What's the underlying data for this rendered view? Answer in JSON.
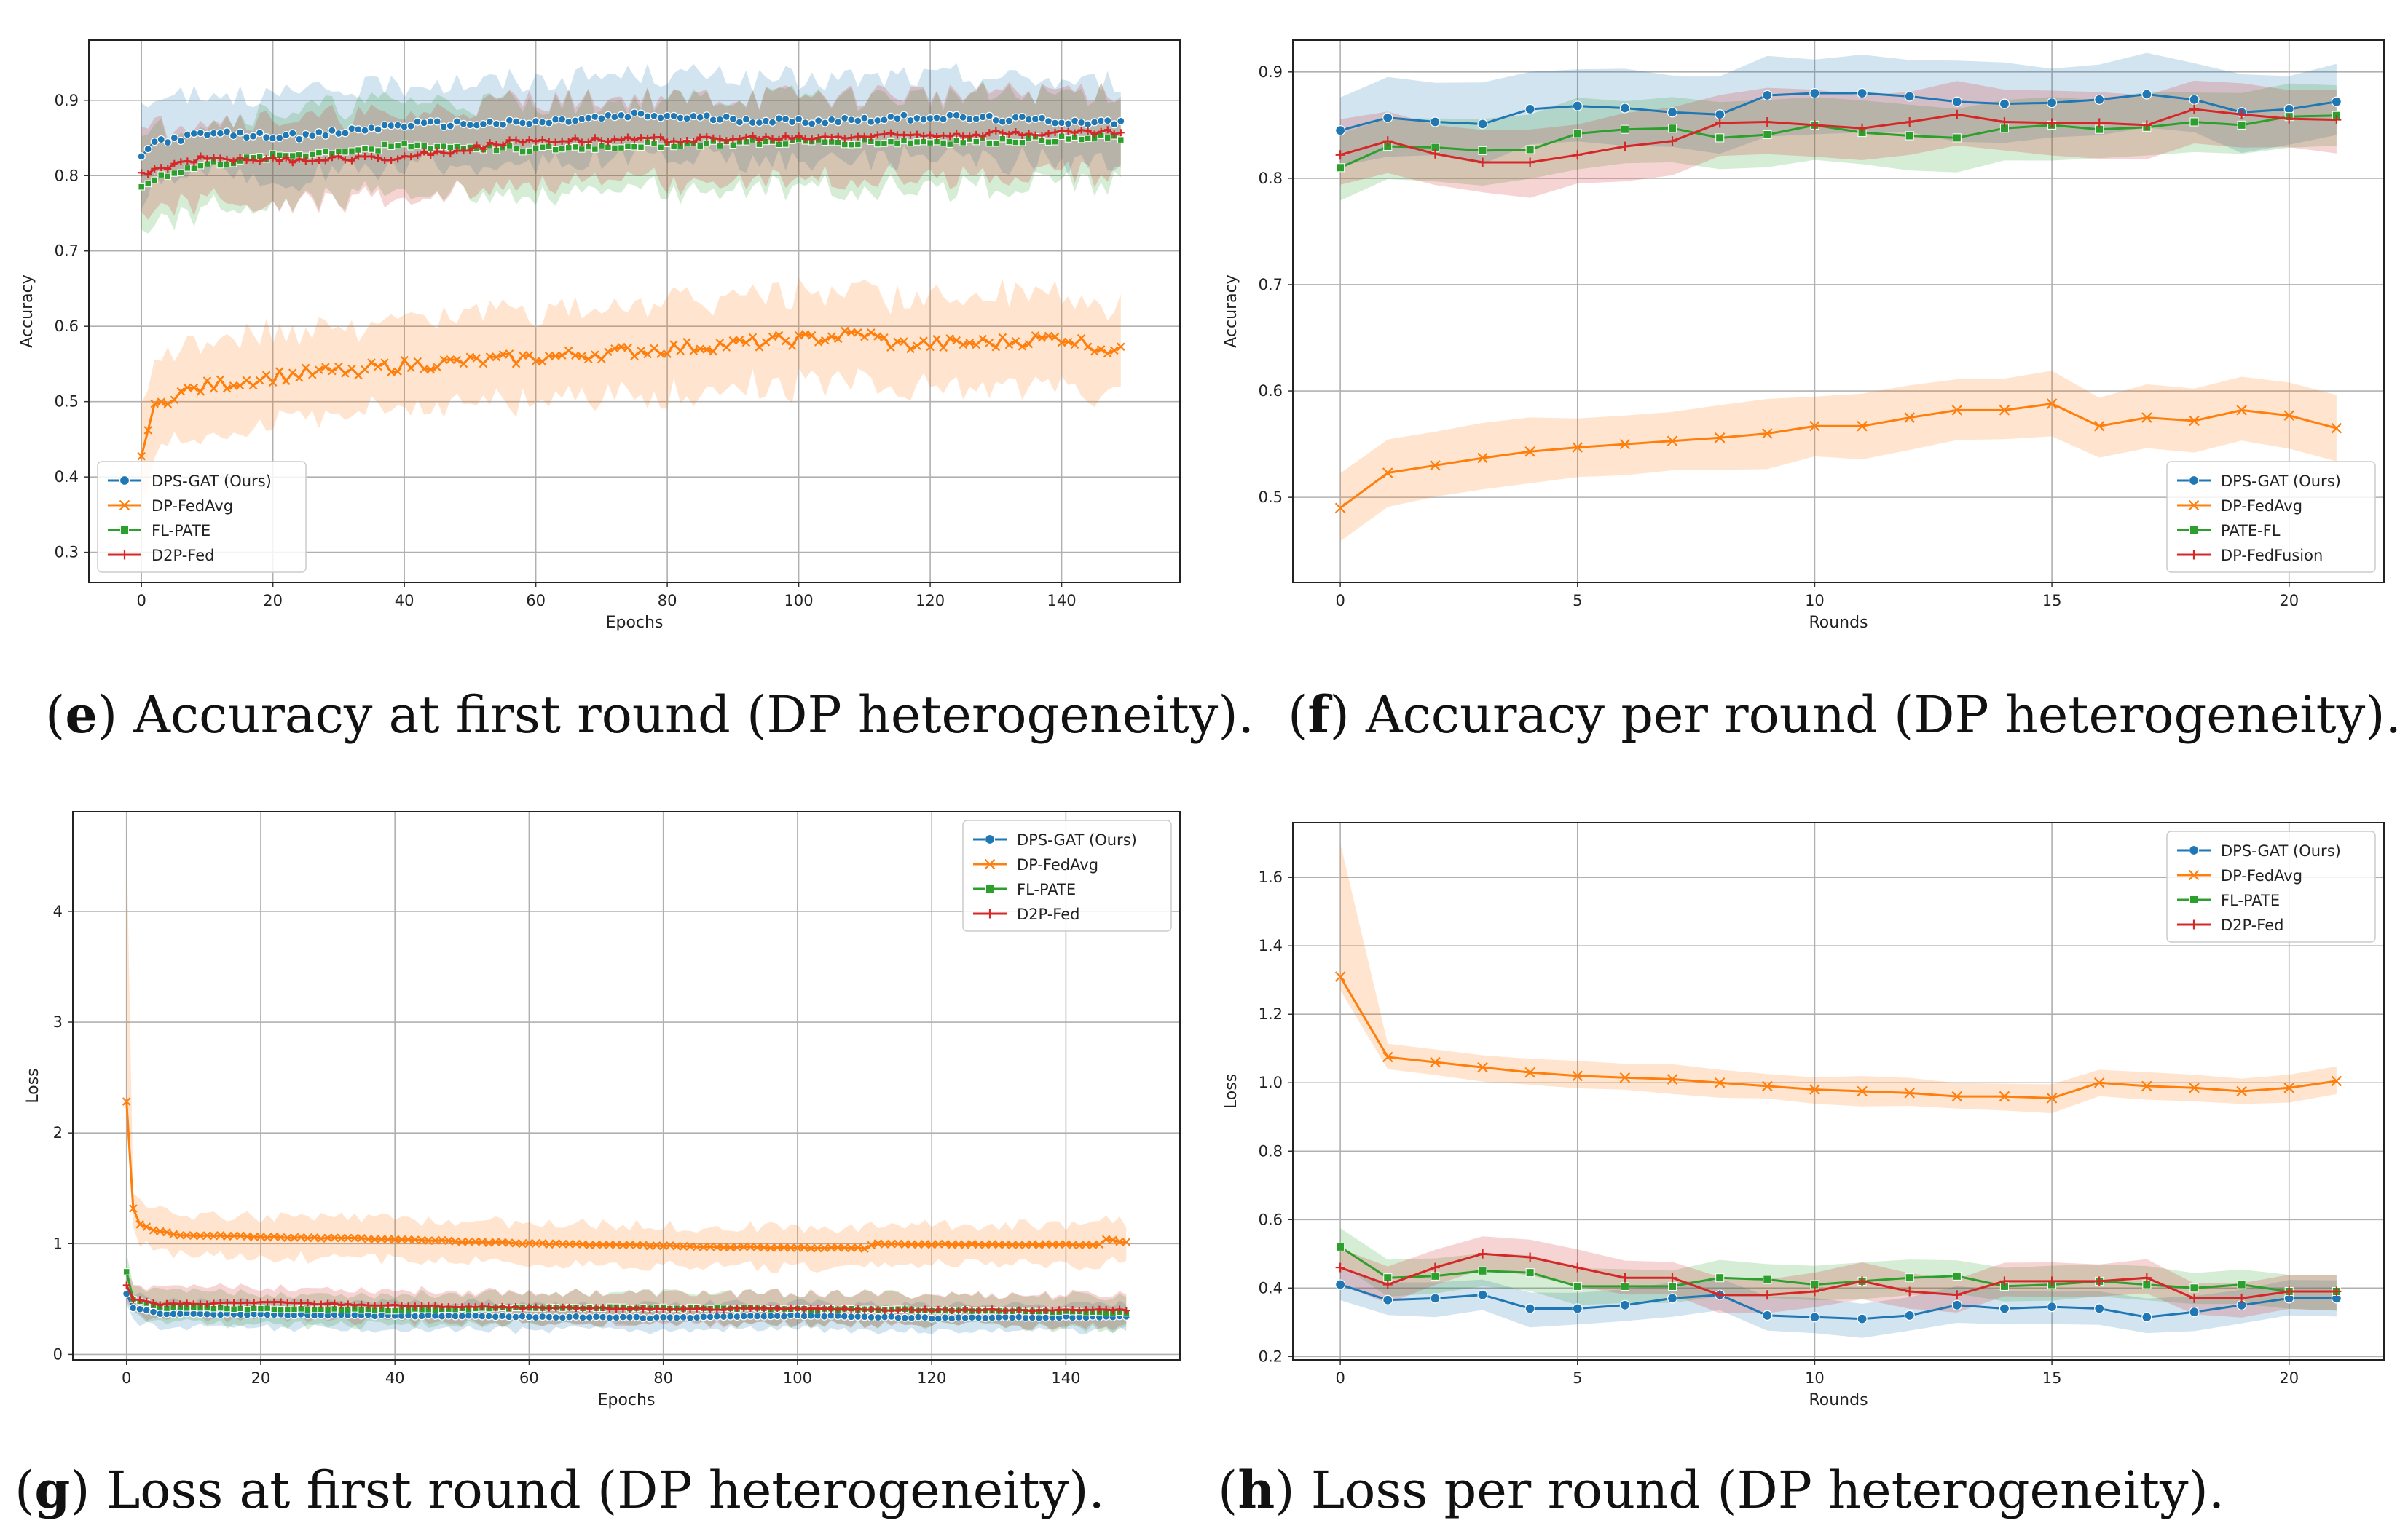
{
  "colors": {
    "blue": "#1f77b4",
    "orange": "#ff7f0e",
    "green": "#2ca02c",
    "red": "#d62728"
  },
  "chart_data": [
    {
      "id": "e",
      "type": "line",
      "caption": {
        "letter": "e",
        "text": ") Accuracy at first round (DP heterogeneity)."
      },
      "xlabel": "Epochs",
      "ylabel": "Accuracy",
      "xlim": [
        -8,
        158
      ],
      "ylim": [
        0.26,
        0.98
      ],
      "xticks": [
        0,
        20,
        40,
        60,
        80,
        100,
        120,
        140
      ],
      "yticks": [
        0.3,
        0.4,
        0.5,
        0.6,
        0.7,
        0.8,
        0.9
      ],
      "legend": {
        "position": "lower-left"
      },
      "grid": true,
      "series": [
        {
          "name": "DPS-GAT (Ours)",
          "color": "#1f77b4",
          "marker": "circle",
          "noise": 0.004,
          "band": 0.055,
          "anchors": [
            [
              0,
              0.825
            ],
            [
              2,
              0.845
            ],
            [
              10,
              0.855
            ],
            [
              25,
              0.852
            ],
            [
              40,
              0.868
            ],
            [
              60,
              0.87
            ],
            [
              75,
              0.88
            ],
            [
              100,
              0.872
            ],
            [
              120,
              0.878
            ],
            [
              149,
              0.87
            ]
          ]
        },
        {
          "name": "DP-FedAvg",
          "color": "#ff7f0e",
          "marker": "x",
          "noise": 0.008,
          "band": 0.06,
          "anchors": [
            [
              0,
              0.435
            ],
            [
              2,
              0.49
            ],
            [
              5,
              0.51
            ],
            [
              10,
              0.52
            ],
            [
              20,
              0.533
            ],
            [
              40,
              0.548
            ],
            [
              60,
              0.558
            ],
            [
              80,
              0.57
            ],
            [
              100,
              0.582
            ],
            [
              110,
              0.59
            ],
            [
              115,
              0.575
            ],
            [
              130,
              0.578
            ],
            [
              140,
              0.585
            ],
            [
              149,
              0.565
            ]
          ]
        },
        {
          "name": "FL-PATE",
          "color": "#2ca02c",
          "marker": "square",
          "noise": 0.004,
          "band": 0.06,
          "anchors": [
            [
              0,
              0.785
            ],
            [
              3,
              0.8
            ],
            [
              10,
              0.815
            ],
            [
              20,
              0.825
            ],
            [
              40,
              0.84
            ],
            [
              60,
              0.835
            ],
            [
              80,
              0.842
            ],
            [
              100,
              0.845
            ],
            [
              120,
              0.845
            ],
            [
              149,
              0.85
            ]
          ]
        },
        {
          "name": "D2P-Fed",
          "color": "#d62728",
          "marker": "plus",
          "noise": 0.004,
          "band": 0.055,
          "anchors": [
            [
              0,
              0.8
            ],
            [
              3,
              0.81
            ],
            [
              10,
              0.825
            ],
            [
              20,
              0.82
            ],
            [
              40,
              0.825
            ],
            [
              60,
              0.848
            ],
            [
              80,
              0.848
            ],
            [
              100,
              0.85
            ],
            [
              120,
              0.855
            ],
            [
              149,
              0.858
            ]
          ]
        }
      ]
    },
    {
      "id": "f",
      "type": "line",
      "caption": {
        "letter": "f",
        "text": ") Accuracy per round (DP heterogeneity)."
      },
      "xlabel": "Rounds",
      "ylabel": "Accuracy",
      "xlim": [
        -1,
        22
      ],
      "ylim": [
        0.42,
        0.93
      ],
      "xticks": [
        0,
        5,
        10,
        15,
        20
      ],
      "yticks": [
        0.5,
        0.6,
        0.7,
        0.8,
        0.9
      ],
      "legend": {
        "position": "lower-right"
      },
      "grid": true,
      "series": [
        {
          "name": "DPS-GAT (Ours)",
          "color": "#1f77b4",
          "marker": "circle",
          "band": 0.035,
          "values": [
            0.845,
            0.857,
            0.853,
            0.851,
            0.865,
            0.868,
            0.866,
            0.862,
            0.86,
            0.878,
            0.88,
            0.88,
            0.877,
            0.872,
            0.87,
            0.871,
            0.874,
            0.879,
            0.874,
            0.862,
            0.865,
            0.872
          ]
        },
        {
          "name": "DP-FedAvg",
          "color": "#ff7f0e",
          "marker": "x",
          "band": 0.03,
          "values": [
            0.49,
            0.523,
            0.53,
            0.537,
            0.543,
            0.547,
            0.55,
            0.553,
            0.556,
            0.56,
            0.567,
            0.567,
            0.575,
            0.582,
            0.582,
            0.588,
            0.567,
            0.575,
            0.572,
            0.582,
            0.577,
            0.565
          ]
        },
        {
          "name": "PATE-FL",
          "color": "#2ca02c",
          "marker": "square",
          "band": 0.03,
          "values": [
            0.81,
            0.83,
            0.829,
            0.826,
            0.827,
            0.842,
            0.846,
            0.847,
            0.838,
            0.841,
            0.85,
            0.843,
            0.84,
            0.838,
            0.847,
            0.85,
            0.846,
            0.848,
            0.853,
            0.85,
            0.858,
            0.859
          ]
        },
        {
          "name": "DP-FedFusion",
          "color": "#d62728",
          "marker": "plus",
          "band": 0.03,
          "values": [
            0.822,
            0.835,
            0.823,
            0.815,
            0.815,
            0.822,
            0.83,
            0.835,
            0.852,
            0.853,
            0.85,
            0.847,
            0.853,
            0.86,
            0.853,
            0.852,
            0.852,
            0.85,
            0.865,
            0.86,
            0.856,
            0.855
          ]
        }
      ]
    },
    {
      "id": "g",
      "type": "line",
      "caption": {
        "letter": "g",
        "text": ") Loss at first round (DP heterogeneity)."
      },
      "xlabel": "Epochs",
      "ylabel": "Loss",
      "xlim": [
        -8,
        157
      ],
      "ylim": [
        -0.05,
        4.9
      ],
      "xticks": [
        0,
        20,
        40,
        60,
        80,
        100,
        120,
        140
      ],
      "yticks": [
        0,
        1,
        2,
        3,
        4
      ],
      "legend": {
        "position": "upper-right"
      },
      "grid": true,
      "series": [
        {
          "name": "DPS-GAT (Ours)",
          "color": "#1f77b4",
          "marker": "circle",
          "noise": 0.006,
          "band": 0.12,
          "anchors": [
            [
              0,
              0.55
            ],
            [
              1,
              0.42
            ],
            [
              5,
              0.37
            ],
            [
              20,
              0.36
            ],
            [
              40,
              0.35
            ],
            [
              60,
              0.34
            ],
            [
              80,
              0.33
            ],
            [
              100,
              0.35
            ],
            [
              120,
              0.33
            ],
            [
              149,
              0.34
            ]
          ]
        },
        {
          "name": "DP-FedAvg",
          "color": "#ff7f0e",
          "marker": "x",
          "noise": 0.006,
          "band": 0.18,
          "anchors": [
            [
              0,
              2.28
            ],
            [
              1,
              1.32
            ],
            [
              2,
              1.18
            ],
            [
              4,
              1.12
            ],
            [
              8,
              1.08
            ],
            [
              20,
              1.06
            ],
            [
              40,
              1.04
            ],
            [
              60,
              1.0
            ],
            [
              80,
              0.98
            ],
            [
              100,
              0.96
            ],
            [
              110,
              0.96
            ],
            [
              112,
              1.0
            ],
            [
              130,
              0.99
            ],
            [
              145,
              0.99
            ],
            [
              146,
              1.04
            ],
            [
              149,
              1.01
            ]
          ]
        },
        {
          "name": "FL-PATE",
          "color": "#2ca02c",
          "marker": "square",
          "noise": 0.008,
          "band": 0.14,
          "anchors": [
            [
              0,
              0.75
            ],
            [
              1,
              0.5
            ],
            [
              5,
              0.42
            ],
            [
              20,
              0.41
            ],
            [
              40,
              0.4
            ],
            [
              60,
              0.42
            ],
            [
              80,
              0.42
            ],
            [
              100,
              0.41
            ],
            [
              120,
              0.4
            ],
            [
              149,
              0.38
            ]
          ]
        },
        {
          "name": "D2P-Fed",
          "color": "#d62728",
          "marker": "plus",
          "noise": 0.008,
          "band": 0.14,
          "anchors": [
            [
              0,
              0.62
            ],
            [
              1,
              0.5
            ],
            [
              5,
              0.45
            ],
            [
              20,
              0.47
            ],
            [
              40,
              0.44
            ],
            [
              60,
              0.42
            ],
            [
              80,
              0.41
            ],
            [
              100,
              0.41
            ],
            [
              120,
              0.4
            ],
            [
              149,
              0.4
            ]
          ]
        }
      ]
    },
    {
      "id": "h",
      "type": "line",
      "caption": {
        "letter": "h",
        "text": ") Loss per round (DP heterogeneity)."
      },
      "xlabel": "Rounds",
      "ylabel": "Loss",
      "xlim": [
        -1,
        22
      ],
      "ylim": [
        0.19,
        1.76
      ],
      "xticks": [
        0,
        5,
        10,
        15,
        20
      ],
      "yticks": [
        0.2,
        0.4,
        0.6,
        0.8,
        1.0,
        1.2,
        1.4,
        1.6
      ],
      "legend": {
        "position": "upper-right"
      },
      "grid": true,
      "series": [
        {
          "name": "DPS-GAT (Ours)",
          "color": "#1f77b4",
          "marker": "circle",
          "band": 0.05,
          "values": [
            0.41,
            0.365,
            0.37,
            0.38,
            0.34,
            0.34,
            0.35,
            0.37,
            0.38,
            0.32,
            0.315,
            0.31,
            0.32,
            0.35,
            0.34,
            0.345,
            0.34,
            0.315,
            0.33,
            0.35,
            0.37,
            0.37
          ]
        },
        {
          "name": "DP-FedAvg",
          "color": "#ff7f0e",
          "marker": "x",
          "band": 0.04,
          "values": [
            1.31,
            1.075,
            1.06,
            1.045,
            1.03,
            1.02,
            1.015,
            1.01,
            1.0,
            0.99,
            0.98,
            0.975,
            0.97,
            0.96,
            0.96,
            0.955,
            1.0,
            0.99,
            0.985,
            0.975,
            0.985,
            1.005
          ]
        },
        {
          "name": "FL-PATE",
          "color": "#2ca02c",
          "marker": "square",
          "band": 0.05,
          "values": [
            0.52,
            0.43,
            0.435,
            0.45,
            0.445,
            0.405,
            0.405,
            0.405,
            0.43,
            0.425,
            0.41,
            0.42,
            0.43,
            0.435,
            0.405,
            0.41,
            0.42,
            0.41,
            0.4,
            0.41,
            0.39,
            0.39
          ]
        },
        {
          "name": "D2P-Fed",
          "color": "#d62728",
          "marker": "plus",
          "band": 0.05,
          "values": [
            0.46,
            0.41,
            0.46,
            0.5,
            0.49,
            0.46,
            0.43,
            0.43,
            0.38,
            0.38,
            0.39,
            0.42,
            0.39,
            0.38,
            0.42,
            0.42,
            0.42,
            0.43,
            0.37,
            0.37,
            0.39,
            0.39
          ]
        }
      ]
    }
  ]
}
